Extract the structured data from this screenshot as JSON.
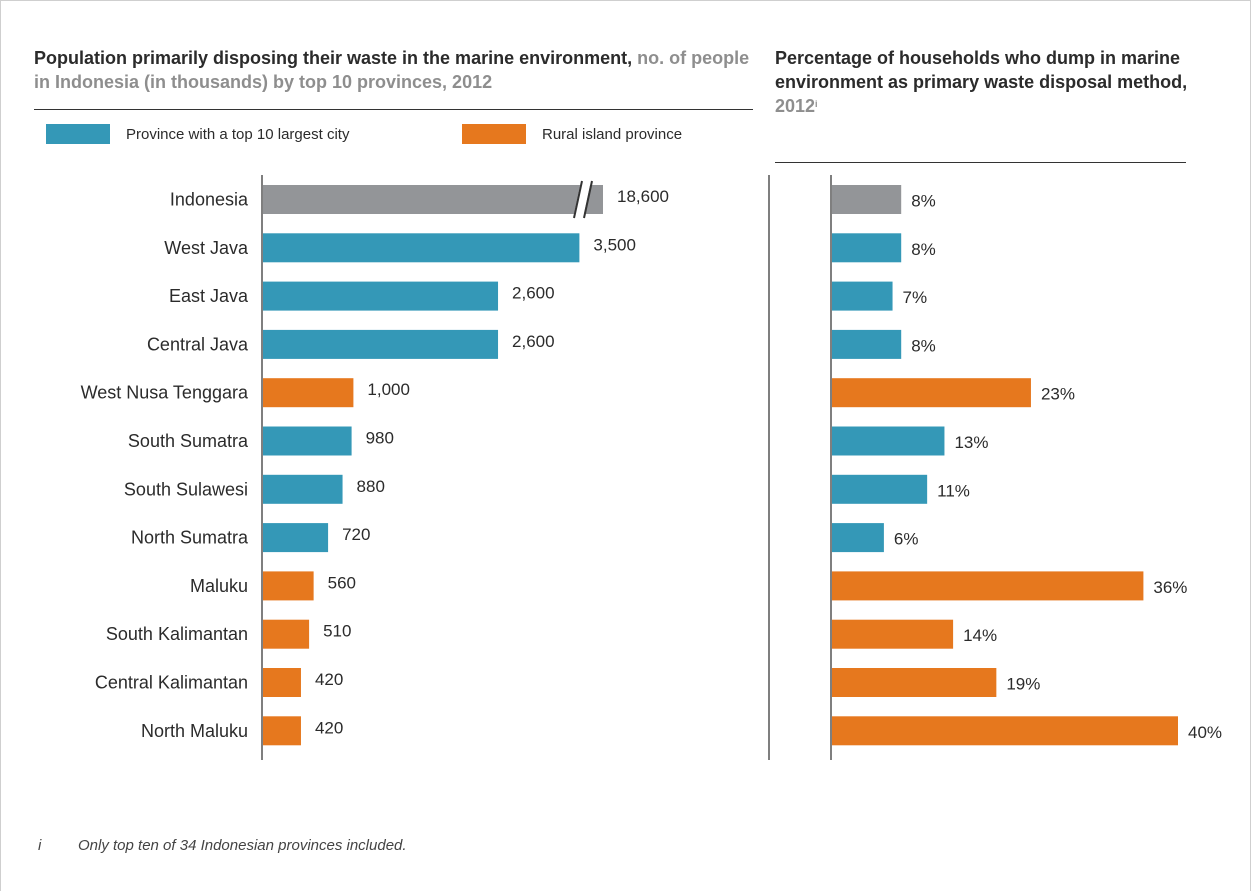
{
  "colors": {
    "indonesia": "#939598",
    "city": "#3498b7",
    "rural": "#e6781e",
    "axis": "#7f7f7f"
  },
  "left_title": {
    "main": "Population primarily disposing their waste in the marine environment,",
    "sub": "no. of people in Indonesia (in thousands) by top 10 provinces, 2012"
  },
  "right_title": {
    "main": "Percentage of households who dump in marine environment as primary waste disposal method,",
    "year": "2012",
    "footnote_marker": "i"
  },
  "legend": [
    {
      "label": "Province with a top 10 largest city",
      "color_key": "city"
    },
    {
      "label": "Rural island province",
      "color_key": "rural"
    }
  ],
  "footnote": {
    "marker": "i",
    "text": "Only top ten of 34 Indonesian provinces included."
  },
  "chart_data": [
    {
      "type": "bar",
      "orientation": "horizontal",
      "axis_break": true,
      "categories": [
        "Indonesia",
        "West Java",
        "East Java",
        "Central Java",
        "West Nusa Tenggara",
        "South Sumatra",
        "South Sulawesi",
        "North Sumatra",
        "Maluku",
        "South Kalimantan",
        "Central Kalimantan",
        "North Maluku"
      ],
      "values": [
        18600,
        3500,
        2600,
        2600,
        1000,
        980,
        880,
        720,
        560,
        510,
        420,
        420
      ],
      "value_labels": [
        "18,600",
        "3,500",
        "2,600",
        "2,600",
        "1,000",
        "980",
        "880",
        "720",
        "560",
        "510",
        "420",
        "420"
      ],
      "groups": [
        "total",
        "city",
        "city",
        "city",
        "rural",
        "city",
        "city",
        "city",
        "rural",
        "rural",
        "rural",
        "rural"
      ]
    },
    {
      "type": "bar",
      "orientation": "horizontal",
      "categories": [
        "Indonesia",
        "West Java",
        "East Java",
        "Central Java",
        "West Nusa Tenggara",
        "South Sumatra",
        "South Sulawesi",
        "North Sumatra",
        "Maluku",
        "South Kalimantan",
        "Central Kalimantan",
        "North Maluku"
      ],
      "values": [
        8,
        8,
        7,
        8,
        23,
        13,
        11,
        6,
        36,
        14,
        19,
        40
      ],
      "value_labels": [
        "8%",
        "8%",
        "7%",
        "8%",
        "23%",
        "13%",
        "11%",
        "6%",
        "36%",
        "14%",
        "19%",
        "40%"
      ],
      "groups": [
        "total",
        "city",
        "city",
        "city",
        "rural",
        "city",
        "city",
        "city",
        "rural",
        "rural",
        "rural",
        "rural"
      ]
    }
  ]
}
